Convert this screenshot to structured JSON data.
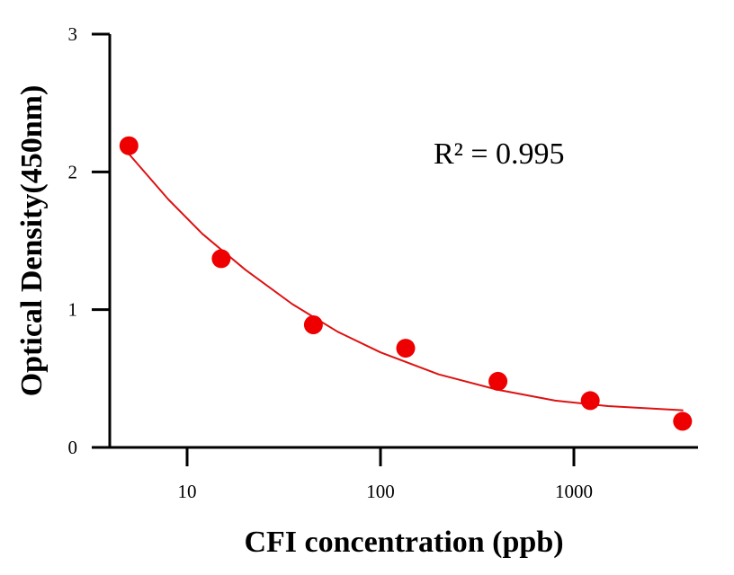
{
  "chart_data": {
    "type": "scatter",
    "title": "",
    "xlabel": "CFI concentration (ppb)",
    "ylabel": "Optical Density(450nm)",
    "x_scale": "log",
    "xlim": [
      3.5,
      4500
    ],
    "ylim": [
      0,
      3
    ],
    "x_ticks": [
      {
        "value": 10,
        "label": "10"
      },
      {
        "value": 100,
        "label": "100"
      },
      {
        "value": 1000,
        "label": "1000"
      }
    ],
    "y_ticks": [
      {
        "value": 0,
        "label": "0"
      },
      {
        "value": 1,
        "label": "1"
      },
      {
        "value": 2,
        "label": "2"
      },
      {
        "value": 3,
        "label": "3"
      }
    ],
    "grid": false,
    "legend": "none",
    "annotation": "R² = 0.995",
    "series": [
      {
        "name": "measured",
        "kind": "points",
        "color": "#ee0000",
        "x": [
          5,
          15,
          45,
          135,
          405,
          1215,
          3645
        ],
        "y": [
          2.19,
          1.37,
          0.89,
          0.72,
          0.48,
          0.34,
          0.19
        ]
      },
      {
        "name": "fit",
        "kind": "line",
        "color": "#dd1111",
        "x": [
          5,
          8,
          12,
          20,
          35,
          60,
          100,
          200,
          400,
          800,
          1500,
          3645
        ],
        "y": [
          2.13,
          1.8,
          1.55,
          1.29,
          1.04,
          0.84,
          0.69,
          0.53,
          0.42,
          0.34,
          0.3,
          0.27
        ]
      }
    ]
  }
}
